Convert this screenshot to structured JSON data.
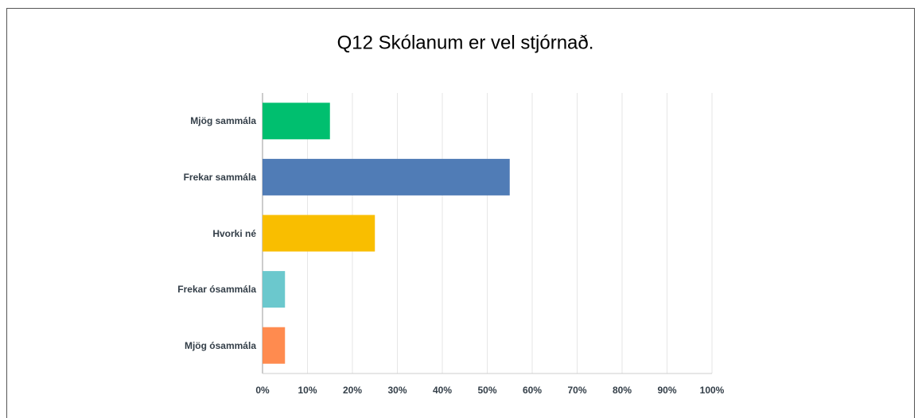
{
  "chart_data": {
    "type": "bar",
    "orientation": "horizontal",
    "title": "Q12 Skólanum er vel stjórnað.",
    "categories": [
      "Mjög sammála",
      "Frekar sammála",
      "Hvorki né",
      "Frekar ósammála",
      "Mjög ósammála"
    ],
    "values": [
      15,
      55,
      25,
      5,
      5
    ],
    "colors": [
      "#00bf6f",
      "#507cb6",
      "#f9be00",
      "#6bc8cd",
      "#ff8b4f"
    ],
    "xlim": [
      0,
      100
    ],
    "xticks": [
      {
        "value": 0,
        "label": "0%"
      },
      {
        "value": 10,
        "label": "10%"
      },
      {
        "value": 20,
        "label": "20%"
      },
      {
        "value": 30,
        "label": "30%"
      },
      {
        "value": 40,
        "label": "40%"
      },
      {
        "value": 50,
        "label": "50%"
      },
      {
        "value": 60,
        "label": "60%"
      },
      {
        "value": 70,
        "label": "70%"
      },
      {
        "value": 80,
        "label": "80%"
      },
      {
        "value": 90,
        "label": "90%"
      },
      {
        "value": 100,
        "label": "100%"
      }
    ],
    "grid": true
  }
}
